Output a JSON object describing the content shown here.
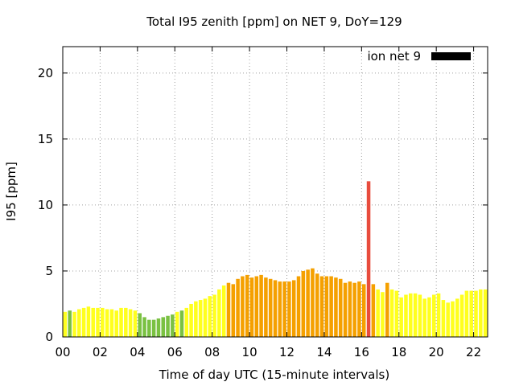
{
  "chart_data": {
    "type": "bar",
    "title": "Total I95 zenith [ppm] on NET 9, DoY=129",
    "xlabel": "Time of day UTC (15-minute intervals)",
    "ylabel": "I95 [ppm]",
    "xlim": [
      0,
      22.75
    ],
    "ylim": [
      0,
      22
    ],
    "x_ticks": [
      "00",
      "02",
      "04",
      "06",
      "08",
      "10",
      "12",
      "14",
      "16",
      "18",
      "20",
      "22"
    ],
    "y_ticks": [
      "0",
      "5",
      "10",
      "15",
      "20"
    ],
    "grid": true,
    "legend": {
      "position": "top-right",
      "entries": [
        {
          "label": "ion net 9",
          "color": "#000000"
        }
      ]
    },
    "bar_interval_hours": 0.25,
    "colors": {
      "green": "#7ac142",
      "yellow": "#ffff1e",
      "orange": "#f5a000",
      "red": "#e84c3d"
    },
    "series": [
      {
        "name": "ion net 9",
        "x": [
          0.125,
          0.375,
          0.625,
          0.875,
          1.125,
          1.375,
          1.625,
          1.875,
          2.125,
          2.375,
          2.625,
          2.875,
          3.125,
          3.375,
          3.625,
          3.875,
          4.125,
          4.375,
          4.625,
          4.875,
          5.125,
          5.375,
          5.625,
          5.875,
          6.125,
          6.375,
          6.625,
          6.875,
          7.125,
          7.375,
          7.625,
          7.875,
          8.125,
          8.375,
          8.625,
          8.875,
          9.125,
          9.375,
          9.625,
          9.875,
          10.125,
          10.375,
          10.625,
          10.875,
          11.125,
          11.375,
          11.625,
          11.875,
          12.125,
          12.375,
          12.625,
          12.875,
          13.125,
          13.375,
          13.625,
          13.875,
          14.125,
          14.375,
          14.625,
          14.875,
          15.125,
          15.375,
          15.625,
          15.875,
          16.125,
          16.375,
          16.625,
          16.875,
          17.125,
          17.375,
          17.625,
          17.875,
          18.125,
          18.375,
          18.625,
          18.875,
          19.125,
          19.375,
          19.625,
          19.875,
          20.125,
          20.375,
          20.625,
          20.875,
          21.125,
          21.375,
          21.625,
          21.875,
          22.125,
          22.375,
          22.625
        ],
        "values": [
          1.9,
          2.0,
          1.9,
          2.1,
          2.2,
          2.3,
          2.2,
          2.2,
          2.2,
          2.1,
          2.1,
          2.0,
          2.2,
          2.2,
          2.1,
          2.0,
          1.8,
          1.5,
          1.3,
          1.3,
          1.4,
          1.5,
          1.6,
          1.7,
          1.9,
          2.0,
          2.2,
          2.5,
          2.7,
          2.8,
          2.9,
          3.1,
          3.2,
          3.6,
          3.9,
          4.1,
          4.0,
          4.4,
          4.6,
          4.7,
          4.5,
          4.6,
          4.7,
          4.5,
          4.4,
          4.3,
          4.2,
          4.2,
          4.2,
          4.3,
          4.6,
          5.0,
          5.1,
          5.2,
          4.8,
          4.6,
          4.6,
          4.6,
          4.5,
          4.4,
          4.1,
          4.2,
          4.1,
          4.2,
          4.0,
          11.8,
          4.0,
          3.6,
          3.4,
          4.1,
          3.6,
          3.5,
          3.0,
          3.2,
          3.3,
          3.3,
          3.2,
          2.9,
          3.0,
          3.2,
          3.3,
          2.8,
          2.6,
          2.7,
          2.9,
          3.2,
          3.5,
          3.5,
          3.5,
          3.6,
          3.6
        ],
        "colors": [
          "yellow",
          "green",
          "yellow",
          "yellow",
          "yellow",
          "yellow",
          "yellow",
          "yellow",
          "yellow",
          "yellow",
          "yellow",
          "yellow",
          "yellow",
          "yellow",
          "yellow",
          "yellow",
          "green",
          "green",
          "green",
          "green",
          "green",
          "green",
          "green",
          "green",
          "yellow",
          "green",
          "yellow",
          "yellow",
          "yellow",
          "yellow",
          "yellow",
          "yellow",
          "yellow",
          "yellow",
          "yellow",
          "orange",
          "orange",
          "orange",
          "orange",
          "orange",
          "orange",
          "orange",
          "orange",
          "orange",
          "orange",
          "orange",
          "orange",
          "orange",
          "orange",
          "orange",
          "orange",
          "orange",
          "orange",
          "orange",
          "orange",
          "orange",
          "orange",
          "orange",
          "orange",
          "orange",
          "orange",
          "orange",
          "orange",
          "orange",
          "orange",
          "red",
          "orange",
          "yellow",
          "yellow",
          "orange",
          "yellow",
          "yellow",
          "yellow",
          "yellow",
          "yellow",
          "yellow",
          "yellow",
          "yellow",
          "yellow",
          "yellow",
          "yellow",
          "yellow",
          "yellow",
          "yellow",
          "yellow",
          "yellow",
          "yellow",
          "yellow",
          "yellow",
          "yellow",
          "yellow"
        ]
      }
    ]
  }
}
